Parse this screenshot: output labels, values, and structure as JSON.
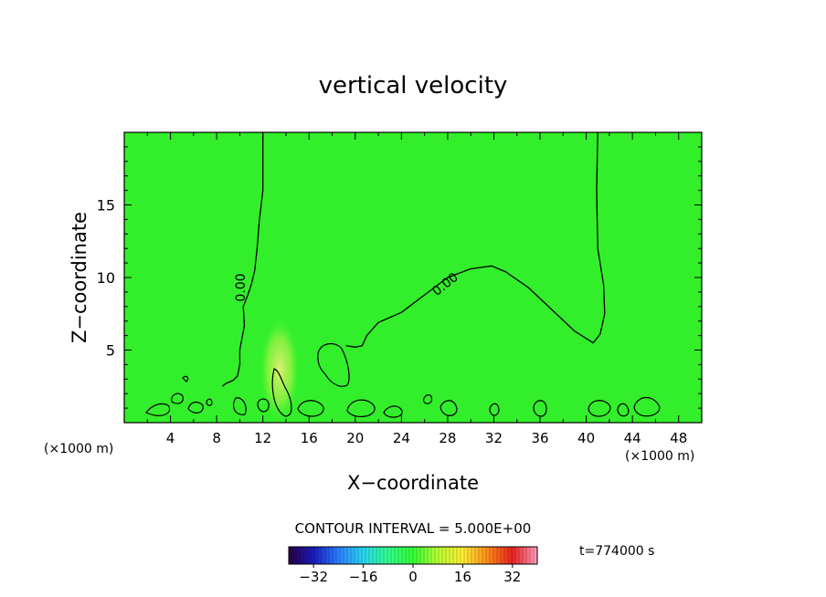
{
  "chart_data": {
    "type": "contour",
    "title": "vertical velocity",
    "xlabel": "X−coordinate",
    "ylabel": "Z−coordinate",
    "x_unit_left": "(×1000 m)",
    "x_unit_right": "(×1000 m)",
    "xlim": [
      0,
      50
    ],
    "ylim": [
      0,
      20
    ],
    "xticks": [
      "4",
      "8",
      "12",
      "16",
      "20",
      "24",
      "28",
      "32",
      "36",
      "40",
      "44",
      "48"
    ],
    "yticks": [
      "5",
      "10",
      "15"
    ],
    "contour_interval_text": "CONTOUR INTERVAL = 5.000E+00",
    "contour_labels": [
      "0.00",
      "0.00"
    ],
    "time_text": "t=774000 s",
    "colorbar": {
      "range": [
        -40,
        40
      ],
      "tick_labels": [
        "−32",
        "−16",
        "0",
        "16",
        "32"
      ],
      "tick_values": [
        -32,
        -16,
        0,
        16,
        32
      ],
      "stops": [
        "#2a0044",
        "#1a1abf",
        "#2a7fff",
        "#29d6f0",
        "#30ff8c",
        "#33ff33",
        "#b8ff33",
        "#ffee33",
        "#ff8c1a",
        "#e82020",
        "#ff9fbf"
      ]
    },
    "zero_contours": [
      {
        "x": [
          12.0,
          12.0,
          11.7,
          11.5,
          11.3,
          11.0,
          10.7,
          10.3,
          10.4,
          10.0,
          10.0,
          9.8,
          9.4,
          8.8,
          8.5
        ],
        "y": [
          20.0,
          16.0,
          14.0,
          12.0,
          10.5,
          9.5,
          8.8,
          8.0,
          6.7,
          5.0,
          4.0,
          3.2,
          2.9,
          2.7,
          2.5
        ]
      },
      {
        "x": [
          41.0,
          40.9,
          41.0,
          41.5,
          41.6,
          41.2,
          40.6,
          39.0,
          37.0,
          35.0,
          33.0,
          31.8,
          30.0,
          28.0,
          26.0,
          24.0,
          22.0,
          21.0,
          20.6,
          20.0,
          19.2
        ],
        "y": [
          20.0,
          16.0,
          12.0,
          9.5,
          7.5,
          6.1,
          5.5,
          6.3,
          7.8,
          9.3,
          10.4,
          10.8,
          10.6,
          10.0,
          8.8,
          7.6,
          6.9,
          6.0,
          5.3,
          5.2,
          5.3
        ]
      }
    ]
  }
}
